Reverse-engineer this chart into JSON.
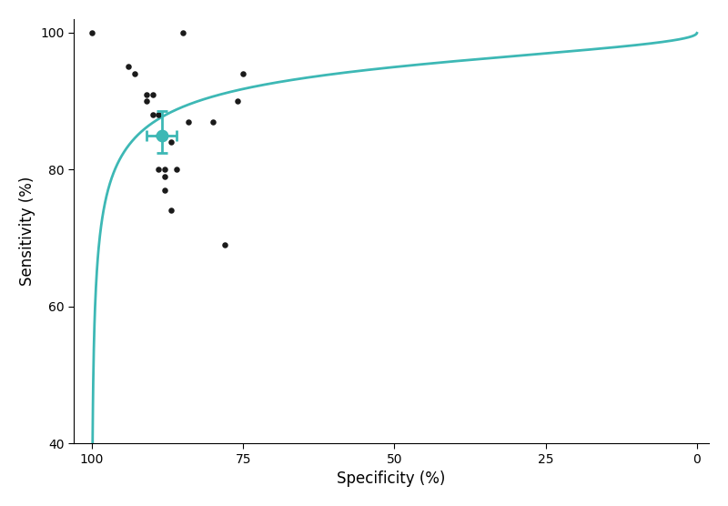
{
  "scatter_points": {
    "specificity": [
      100,
      94,
      93,
      91,
      91,
      90,
      90,
      89,
      89,
      89,
      88,
      88,
      88,
      87,
      87,
      86,
      85,
      84,
      78,
      80,
      75,
      76
    ],
    "sensitivity": [
      100,
      95,
      94,
      91,
      90,
      91,
      88,
      88,
      85,
      80,
      79,
      77,
      80,
      84,
      74,
      80,
      100,
      87,
      69,
      87,
      94,
      90
    ]
  },
  "summary_point": {
    "specificity": 88.5,
    "sensitivity": 85,
    "xerr_low": 2.5,
    "xerr_high": 2.5,
    "yerr_low": 2.5,
    "yerr_high": 3.5
  },
  "curve_color": "#3db8b5",
  "scatter_color": "#1a1a1a",
  "summary_color": "#3db8b5",
  "xlabel": "Specificity (%)",
  "ylabel": "Sensitivity (%)",
  "ylim": [
    40,
    102
  ],
  "yticks": [
    40,
    60,
    80,
    100
  ],
  "xticks": [
    0,
    25,
    50,
    75,
    100
  ],
  "xtick_labels": [
    "0",
    "25",
    "50",
    "75",
    "100"
  ],
  "background_color": "#ffffff",
  "sroc_alpha": 2.5,
  "sroc_beta": 0.5
}
